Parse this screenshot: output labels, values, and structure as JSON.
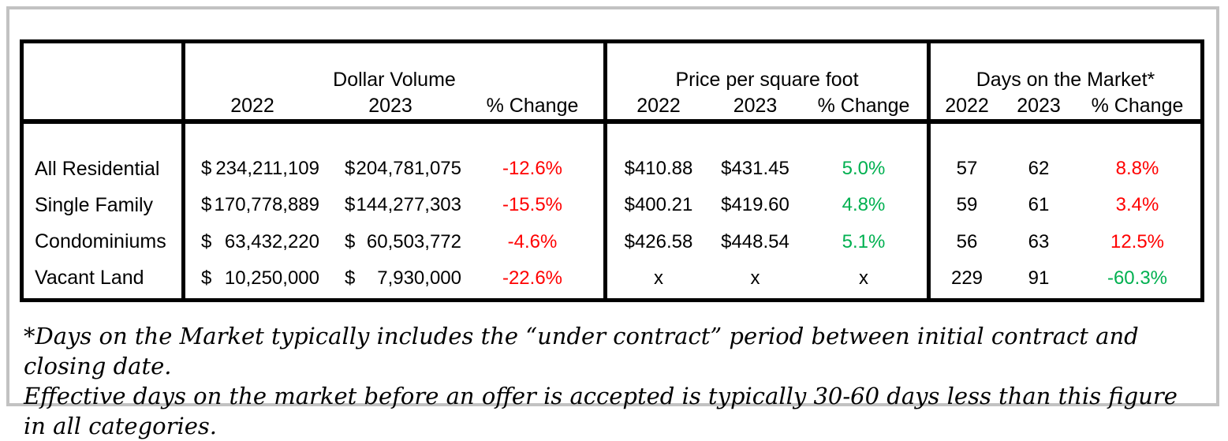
{
  "colors": {
    "negative_red": "#FF0000",
    "positive_green": "#00B050",
    "neutral_black": "#000000"
  },
  "table": {
    "currency_symbol": "$",
    "sections": [
      {
        "title": "Dollar Volume",
        "col_headers": [
          "2022",
          "2023",
          "% Change"
        ]
      },
      {
        "title": "Price per square foot",
        "col_headers": [
          "2022",
          "2023",
          "% Change"
        ]
      },
      {
        "title": "Days on the Market*",
        "col_headers": [
          "2022",
          "2023",
          "% Change"
        ]
      }
    ],
    "rows": [
      {
        "label": "All Residential",
        "dollar_volume": {
          "y2022": "234,211,109",
          "y2023": "204,781,075",
          "pct_change": "-12.6%",
          "pct_color": "negative_red"
        },
        "price_per_sqft": {
          "y2022": "$410.88",
          "y2023": "$431.45",
          "pct_change": "5.0%",
          "pct_color": "positive_green"
        },
        "days_on_market": {
          "y2022": "57",
          "y2023": "62",
          "pct_change": "8.8%",
          "pct_color": "negative_red"
        }
      },
      {
        "label": "Single Family",
        "dollar_volume": {
          "y2022": "170,778,889",
          "y2023": "144,277,303",
          "pct_change": "-15.5%",
          "pct_color": "negative_red"
        },
        "price_per_sqft": {
          "y2022": "$400.21",
          "y2023": "$419.60",
          "pct_change": "4.8%",
          "pct_color": "positive_green"
        },
        "days_on_market": {
          "y2022": "59",
          "y2023": "61",
          "pct_change": "3.4%",
          "pct_color": "negative_red"
        }
      },
      {
        "label": "Condominiums",
        "dollar_volume": {
          "y2022": "63,432,220",
          "y2023": "60,503,772",
          "pct_change": "-4.6%",
          "pct_color": "negative_red"
        },
        "price_per_sqft": {
          "y2022": "$426.58",
          "y2023": "$448.54",
          "pct_change": "5.1%",
          "pct_color": "positive_green"
        },
        "days_on_market": {
          "y2022": "56",
          "y2023": "63",
          "pct_change": "12.5%",
          "pct_color": "negative_red"
        }
      },
      {
        "label": "Vacant Land",
        "dollar_volume": {
          "y2022": "10,250,000",
          "y2023": "7,930,000",
          "pct_change": "-22.6%",
          "pct_color": "negative_red"
        },
        "price_per_sqft": {
          "y2022": "x",
          "y2023": "x",
          "pct_change": "x",
          "pct_color": "neutral_black"
        },
        "days_on_market": {
          "y2022": "229",
          "y2023": "91",
          "pct_change": "-60.3%",
          "pct_color": "positive_green"
        }
      }
    ]
  },
  "footnote": {
    "line1": "*Days on the Market typically includes the “under contract” period between initial contract and closing date.",
    "line2": "Effective days on the market before an offer is accepted is typically 30-60 days less than this figure in all categories."
  }
}
